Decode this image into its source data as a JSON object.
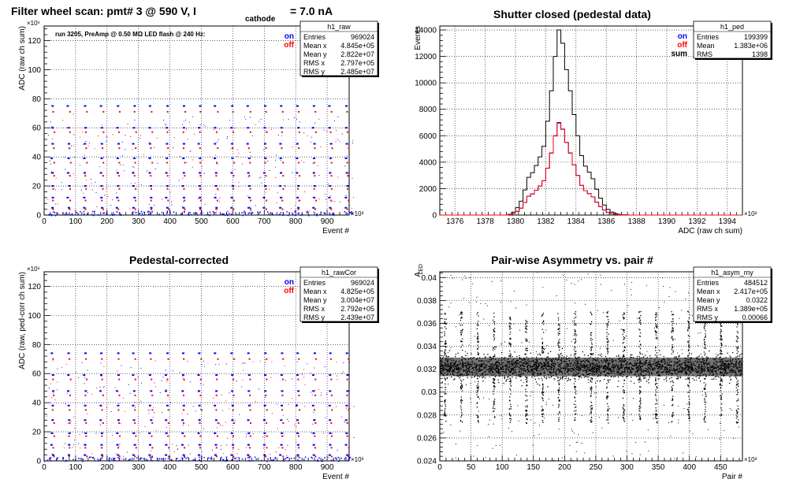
{
  "chart_data": [
    {
      "type": "scatter",
      "title": "Filter wheel scan: pmt#   3 @   590 V, I",
      "title_subscript": "cathode",
      "title_suffix": "= 7.0 nA",
      "xlabel": "Event #",
      "ylabel": "ADC (raw ch sum)",
      "x_multiplier": "×10³",
      "y_multiplier": "×10⁶",
      "xlim": [
        0,
        970
      ],
      "ylim": [
        0,
        130
      ],
      "xticks_major": [
        0,
        100,
        200,
        300,
        400,
        500,
        600,
        700,
        800,
        900
      ],
      "yticks_major": [
        0,
        20,
        40,
        60,
        80,
        100,
        120
      ],
      "grid": true,
      "annotation": "run 3205, PreAmp @ 0.50 MΩ  LED flash @  240 Hz:",
      "legend": [
        {
          "label": "on",
          "color": "#0000ff"
        },
        {
          "label": "off",
          "color": "#ff0000"
        }
      ],
      "levels_on": [
        75,
        60,
        49,
        39,
        29,
        20,
        12,
        5
      ],
      "levels_off": [
        71,
        57,
        46,
        36,
        27,
        18,
        10,
        4
      ],
      "cycle_period": 52,
      "stats": {
        "name": "h1_raw",
        "rows": [
          [
            "Entries",
            "969024"
          ],
          [
            "Mean x",
            "4.845e+05"
          ],
          [
            "Mean y",
            "2.822e+07"
          ],
          [
            "RMS x",
            "2.797e+05"
          ],
          [
            "RMS y",
            "2.485e+07"
          ]
        ]
      }
    },
    {
      "type": "line",
      "title": "Shutter closed (pedestal data)",
      "xlabel": "ADC (raw ch sum)",
      "ylabel": "Events",
      "x_multiplier": "×10³",
      "xlim": [
        1375,
        1395
      ],
      "ylim": [
        0,
        14300
      ],
      "xticks_major": [
        1376,
        1378,
        1380,
        1382,
        1384,
        1386,
        1388,
        1390,
        1392,
        1394
      ],
      "yticks_major": [
        0,
        2000,
        4000,
        6000,
        8000,
        10000,
        12000,
        14000
      ],
      "grid": true,
      "legend": [
        {
          "label": "on",
          "color": "#0000ff"
        },
        {
          "label": "off",
          "color": "#ff0000"
        },
        {
          "label": "sum",
          "color": "#000000"
        }
      ],
      "x": [
        1379.5,
        1379.75,
        1380.0,
        1380.25,
        1380.5,
        1380.75,
        1381.0,
        1381.25,
        1381.5,
        1381.75,
        1382.0,
        1382.25,
        1382.5,
        1382.75,
        1383.0,
        1383.25,
        1383.5,
        1383.75,
        1384.0,
        1384.25,
        1384.5,
        1384.75,
        1385.0,
        1385.25,
        1385.5,
        1385.75,
        1386.0,
        1386.25,
        1386.5,
        1386.75,
        1387.0,
        1387.25,
        1387.5,
        1387.75
      ],
      "series": [
        {
          "name": "sum",
          "values": [
            60,
            220,
            560,
            1050,
            1900,
            2850,
            3200,
            3750,
            4400,
            5200,
            7100,
            9400,
            12000,
            14000,
            13000,
            11000,
            9400,
            7600,
            6000,
            4500,
            3700,
            3250,
            2750,
            1950,
            1280,
            760,
            430,
            220,
            110,
            50,
            20,
            10,
            0,
            0
          ]
        },
        {
          "name": "on",
          "values": [
            30,
            110,
            280,
            525,
            950,
            1425,
            1600,
            1875,
            2200,
            2600,
            3550,
            4700,
            6000,
            7000,
            6500,
            5500,
            4700,
            3800,
            3000,
            2250,
            1850,
            1625,
            1375,
            975,
            640,
            380,
            215,
            110,
            55,
            25,
            10,
            5,
            0,
            0
          ]
        },
        {
          "name": "off",
          "values": [
            30,
            110,
            275,
            520,
            945,
            1420,
            1590,
            1870,
            2190,
            2590,
            3540,
            4680,
            5980,
            6950,
            6480,
            5480,
            4680,
            3790,
            2990,
            2240,
            1845,
            1620,
            1370,
            970,
            635,
            378,
            212,
            108,
            54,
            24,
            10,
            5,
            0,
            0
          ]
        }
      ],
      "stats": {
        "name": "h1_ped",
        "rows": [
          [
            "Entries",
            "199399"
          ],
          [
            "Mean",
            "1.383e+06"
          ],
          [
            "RMS",
            "1398"
          ]
        ]
      }
    },
    {
      "type": "scatter",
      "title": "Pedestal-corrected",
      "xlabel": "Event #",
      "ylabel": "ADC (raw, ped-corr ch sum)",
      "x_multiplier": "×10³",
      "y_multiplier": "×10⁶",
      "xlim": [
        0,
        970
      ],
      "ylim": [
        0,
        130
      ],
      "xticks_major": [
        0,
        100,
        200,
        300,
        400,
        500,
        600,
        700,
        800,
        900
      ],
      "yticks_major": [
        0,
        20,
        40,
        60,
        80,
        100,
        120
      ],
      "grid": true,
      "legend": [
        {
          "label": "on",
          "color": "#0000ff"
        },
        {
          "label": "off",
          "color": "#ff0000"
        }
      ],
      "levels_on": [
        74,
        59,
        48,
        38,
        28,
        19,
        11,
        4
      ],
      "levels_off": [
        70,
        56,
        45,
        35,
        26,
        17,
        9,
        3
      ],
      "cycle_period": 52,
      "stats": {
        "name": "h1_rawCor",
        "rows": [
          [
            "Entries",
            "969024"
          ],
          [
            "Mean x",
            "4.825e+05"
          ],
          [
            "Mean y",
            "3.004e+07"
          ],
          [
            "RMS x",
            "2.792e+05"
          ],
          [
            "RMS y",
            "2.439e+07"
          ]
        ]
      }
    },
    {
      "type": "scatter",
      "title": "Pair-wise Asymmetry vs. pair #",
      "xlabel": "Pair #",
      "ylabel": "A",
      "ylabel_subscript": "LED",
      "x_multiplier": "×10³",
      "xlim": [
        0,
        485
      ],
      "ylim": [
        0.024,
        0.0405
      ],
      "xticks_major": [
        0,
        50,
        100,
        150,
        200,
        250,
        300,
        350,
        400,
        450
      ],
      "yticks_major": [
        0.024,
        0.026,
        0.028,
        0.03,
        0.032,
        0.034,
        0.036,
        0.038,
        0.04
      ],
      "grid": true,
      "band_center": 0.0322,
      "band_halfwidth": 0.0009,
      "spike_period": 26,
      "stats": {
        "name": "h1_asym_my",
        "rows": [
          [
            "Entries",
            "484512"
          ],
          [
            "Mean x",
            "2.417e+05"
          ],
          [
            "Mean y",
            "0.0322"
          ],
          [
            "RMS x",
            "1.389e+05"
          ],
          [
            "RMS y",
            "0.00066"
          ]
        ]
      }
    }
  ]
}
